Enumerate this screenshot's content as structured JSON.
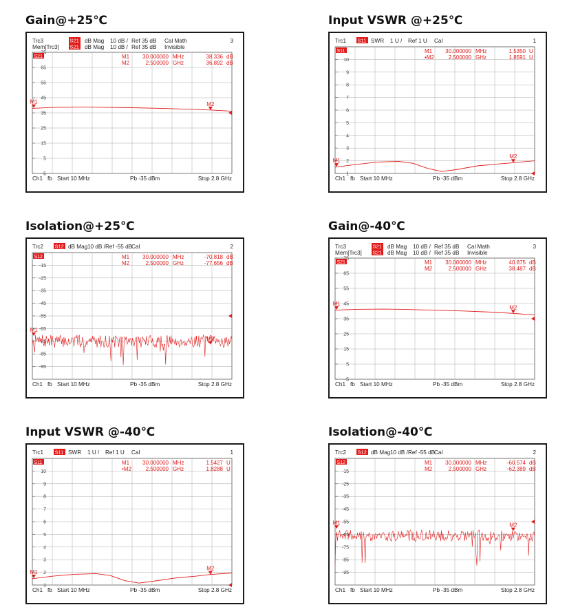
{
  "chart_data": [
    {
      "type": "line",
      "title": "Gain@+25℃",
      "header": [
        [
          "Trc3",
          "S21",
          "dB Mag",
          "10 dB /",
          "Ref 35 dB",
          "Cal Math",
          "3"
        ],
        [
          "Mem[Trc3]",
          "S21",
          "dB Mag",
          "10 dB /",
          "Ref 35 dB",
          "Invisible",
          ""
        ]
      ],
      "trace_tag": "S21",
      "markers": [
        {
          "name": "M1",
          "freq": "30.000000",
          "funit": "MHz",
          "value": "38.336",
          "vunit": "dB",
          "x": 0.03,
          "y": 38.3
        },
        {
          "name": "M2",
          "freq": "2.500000",
          "funit": "GHz",
          "value": "36.892",
          "vunit": "dB",
          "x": 2.5,
          "y": 36.9
        }
      ],
      "ylim": [
        -5,
        75
      ],
      "ref": 35,
      "yticks": [
        75,
        65,
        55,
        45,
        35,
        25,
        15,
        5,
        -5
      ],
      "ytick_labels": [
        "75",
        "65",
        "55",
        "45",
        "35",
        "25",
        "15",
        "5",
        "-5"
      ],
      "ref_label": "M1",
      "xlim": [
        0.01,
        2.8
      ],
      "footer": {
        "ch": "Ch1",
        "fb": "fb",
        "start": "Start  10 MHz",
        "pb": "Pb  -35 dBm",
        "stop": "Stop  2.8 GHz"
      },
      "series": [
        {
          "x": [
            0.01,
            0.3,
            0.7,
            1.0,
            1.4,
            1.8,
            2.2,
            2.5,
            2.8
          ],
          "y": [
            38.0,
            38.6,
            38.8,
            38.7,
            38.4,
            38.0,
            37.4,
            36.9,
            36.1
          ]
        }
      ],
      "color": "#e21b1b"
    },
    {
      "type": "line",
      "title": "Input VSWR @+25℃",
      "header": [
        [
          "Trc1",
          "S11",
          "SWR",
          "1 U /",
          "Ref 1 U",
          "Cal",
          "1"
        ]
      ],
      "trace_tag": "S11",
      "markers": [
        {
          "name": "M1",
          "freq": "30.000000",
          "funit": "MHz",
          "value": "1.5350",
          "vunit": "U",
          "x": 0.03,
          "y": 1.535
        },
        {
          "name": "•M2",
          "freq": "2.500000",
          "funit": "GHz",
          "value": "1.8591",
          "vunit": "U",
          "x": 2.5,
          "y": 1.859
        }
      ],
      "ylim": [
        1,
        11
      ],
      "ref": 1,
      "yticks": [
        10,
        9,
        8,
        7,
        6,
        5,
        4,
        3,
        2,
        1
      ],
      "ytick_labels": [
        "10",
        "9",
        "8",
        "7",
        "6",
        "5",
        "4",
        "3",
        "2",
        "1"
      ],
      "ref_label": "M1",
      "xlim": [
        0.01,
        2.8
      ],
      "footer": {
        "ch": "Ch1",
        "fb": "fb",
        "start": "Start  10 MHz",
        "pb": "Pb  -35 dBm",
        "stop": "Stop  2.8 GHz"
      },
      "series": [
        {
          "x": [
            0.01,
            0.3,
            0.6,
            0.9,
            1.1,
            1.3,
            1.5,
            1.7,
            2.0,
            2.3,
            2.5,
            2.8
          ],
          "y": [
            1.5,
            1.7,
            1.9,
            1.95,
            1.8,
            1.4,
            1.15,
            1.3,
            1.6,
            1.75,
            1.85,
            2.0
          ]
        }
      ],
      "color": "#e21b1b"
    },
    {
      "type": "line",
      "title": "Isolation@+25℃",
      "header": [
        [
          "Trc2",
          "S12",
          "dB Mag",
          "10 dB /",
          "Ref -55 dB",
          "Cal",
          "2"
        ]
      ],
      "trace_tag": "S12",
      "markers": [
        {
          "name": "M1",
          "freq": "30.000000",
          "funit": "MHz",
          "value": "-70.818",
          "vunit": "dB",
          "x": 0.03,
          "y": -70.8
        },
        {
          "name": "M2",
          "freq": "2.500000",
          "funit": "GHz",
          "value": "-77.656",
          "vunit": "dB",
          "x": 2.5,
          "y": -77.7
        }
      ],
      "ylim": [
        -105,
        -5
      ],
      "ref": -55,
      "yticks": [
        -15,
        -25,
        -35,
        -45,
        -55,
        -65,
        -75,
        -85,
        -95
      ],
      "ytick_labels": [
        "-15",
        "-25",
        "-35",
        "-45",
        "-55",
        "-65",
        "-75",
        "-85",
        "-95"
      ],
      "ref_label": "M1",
      "xlim": [
        0.01,
        2.8
      ],
      "footer": {
        "ch": "Ch1",
        "fb": "fb",
        "start": "Start  10 MHz",
        "pb": "Pb  -35 dBm",
        "stop": "Stop  2.8 GHz"
      },
      "noise": {
        "mean": -75,
        "spread": 5,
        "spikes": 14,
        "seed": 7,
        "points": 260
      },
      "color": "#e21b1b"
    },
    {
      "type": "line",
      "title": "Gain@-40℃",
      "header": [
        [
          "Trc3",
          "S21",
          "dB Mag",
          "10 dB /",
          "Ref 35 dB",
          "Cal Math",
          "3"
        ],
        [
          "Mem[Trc3]",
          "S21",
          "dB Mag",
          "10 dB /",
          "Ref 35 dB",
          "Invisible",
          ""
        ]
      ],
      "trace_tag": "S21",
      "markers": [
        {
          "name": "M1",
          "freq": "30.000000",
          "funit": "MHz",
          "value": "40.875",
          "vunit": "dB",
          "x": 0.03,
          "y": 40.9
        },
        {
          "name": "M2",
          "freq": "2.500000",
          "funit": "GHz",
          "value": "38.487",
          "vunit": "dB",
          "x": 2.5,
          "y": 38.5
        }
      ],
      "ylim": [
        -5,
        75
      ],
      "ref": 35,
      "yticks": [
        75,
        65,
        55,
        45,
        35,
        25,
        15,
        5,
        -5
      ],
      "ytick_labels": [
        "75",
        "65",
        "55",
        "45",
        "35",
        "25",
        "15",
        "5",
        "-5"
      ],
      "ref_label": "M1",
      "xlim": [
        0.01,
        2.8
      ],
      "footer": {
        "ch": "Ch1",
        "fb": "fb",
        "start": "Start  10 MHz",
        "pb": "Pb  -35 dBm",
        "stop": "Stop  2.8 GHz"
      },
      "series": [
        {
          "x": [
            0.01,
            0.3,
            0.7,
            1.0,
            1.4,
            1.8,
            2.2,
            2.5,
            2.8
          ],
          "y": [
            40.6,
            41.2,
            41.3,
            41.1,
            40.6,
            40.1,
            39.3,
            38.5,
            37.4
          ]
        }
      ],
      "color": "#e21b1b"
    },
    {
      "type": "line",
      "title": "Input VSWR @-40℃",
      "header": [
        [
          "Trc1",
          "S11",
          "SWR",
          "1 U /",
          "Ref 1 U",
          "Cal",
          "1"
        ]
      ],
      "trace_tag": "S11",
      "markers": [
        {
          "name": "M1",
          "freq": "30.000000",
          "funit": "MHz",
          "value": "1.5427",
          "vunit": "U",
          "x": 0.03,
          "y": 1.543
        },
        {
          "name": "•M2",
          "freq": "2.500000",
          "funit": "GHz",
          "value": "1.8288",
          "vunit": "U",
          "x": 2.5,
          "y": 1.829
        }
      ],
      "ylim": [
        1,
        11
      ],
      "ref": 1,
      "yticks": [
        10,
        9,
        8,
        7,
        6,
        5,
        4,
        3,
        2,
        1
      ],
      "ytick_labels": [
        "10",
        "9",
        "8",
        "7",
        "6",
        "5",
        "4",
        "3",
        "2",
        "1"
      ],
      "ref_label": "M1",
      "xlim": [
        0.01,
        2.8
      ],
      "footer": {
        "ch": "Ch1",
        "fb": "fb",
        "start": "Start  10 MHz",
        "pb": "Pb  -35 dBm",
        "stop": "Stop  2.8 GHz"
      },
      "series": [
        {
          "x": [
            0.01,
            0.3,
            0.6,
            0.9,
            1.1,
            1.3,
            1.5,
            1.7,
            2.0,
            2.3,
            2.5,
            2.8
          ],
          "y": [
            1.5,
            1.7,
            1.85,
            1.9,
            1.75,
            1.35,
            1.15,
            1.3,
            1.55,
            1.7,
            1.83,
            1.95
          ]
        }
      ],
      "color": "#e21b1b"
    },
    {
      "type": "line",
      "title": "Isolation@-40℃",
      "header": [
        [
          "Trc2",
          "S12",
          "dB Mag",
          "10 dB /",
          "Ref -55 dB",
          "Cal",
          "2"
        ]
      ],
      "trace_tag": "S12",
      "markers": [
        {
          "name": "M1",
          "freq": "30.000000",
          "funit": "MHz",
          "value": "-60.574",
          "vunit": "dB",
          "x": 0.03,
          "y": -60.6
        },
        {
          "name": "M2",
          "freq": "2.500000",
          "funit": "GHz",
          "value": "-62.389",
          "vunit": "dB",
          "x": 2.5,
          "y": -62.4
        }
      ],
      "ylim": [
        -105,
        -5
      ],
      "ref": -55,
      "yticks": [
        -15,
        -25,
        -35,
        -45,
        -55,
        -65,
        -75,
        -85,
        -95
      ],
      "ytick_labels": [
        "-15",
        "-25",
        "-35",
        "-45",
        "-55",
        "-65",
        "-75",
        "-85",
        "-95"
      ],
      "ref_label": "M1",
      "xlim": [
        0.01,
        2.8
      ],
      "footer": {
        "ch": "Ch1",
        "fb": "fb",
        "start": "Start  10 MHz",
        "pb": "Pb  -35 dBm",
        "stop": "Stop  2.8 GHz"
      },
      "noise": {
        "mean": -66,
        "spread": 4.5,
        "spikes": 12,
        "seed": 19,
        "points": 260
      },
      "color": "#e21b1b"
    }
  ]
}
